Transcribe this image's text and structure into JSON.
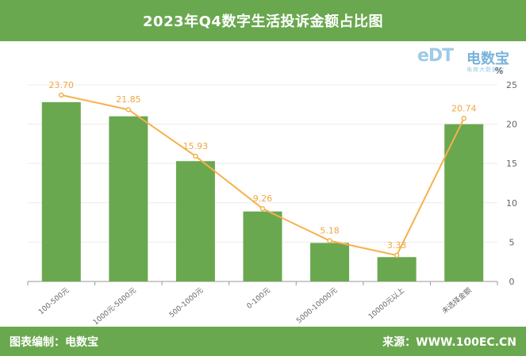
{
  "header": {
    "title": "2023年Q4数字生活投诉金额占比图"
  },
  "footer": {
    "left": "图表编制：电数宝",
    "right": "来源：WWW.100EC.CN"
  },
  "logo": {
    "mark": "eDT",
    "name": "电数宝",
    "sub": "电商大数据库"
  },
  "colors": {
    "bar": "#6aa84f",
    "line": "#f6b14b",
    "label": "#f0a641",
    "header_bg": "#6aa84f",
    "axis_text": "#666666"
  },
  "chart_data": {
    "type": "bar+line",
    "categories": [
      "100-500元",
      "1000元-5000元",
      "500-1000元",
      "0-100元",
      "5000-10000元",
      "10000元以上",
      "未选择金额"
    ],
    "bar_values": [
      22.8,
      21.0,
      15.3,
      8.9,
      4.9,
      3.1,
      20.0
    ],
    "line_values": [
      23.7,
      21.85,
      15.93,
      9.26,
      5.18,
      3.33,
      20.74
    ],
    "line_labels": [
      "23.70",
      "21.85",
      "15.93",
      "9.26",
      "5.18",
      "3.33",
      "20.74"
    ],
    "ylim": [
      0,
      25
    ],
    "yticks": [
      0,
      5,
      10,
      15,
      20,
      25
    ],
    "yunit": "%",
    "grid": true
  }
}
